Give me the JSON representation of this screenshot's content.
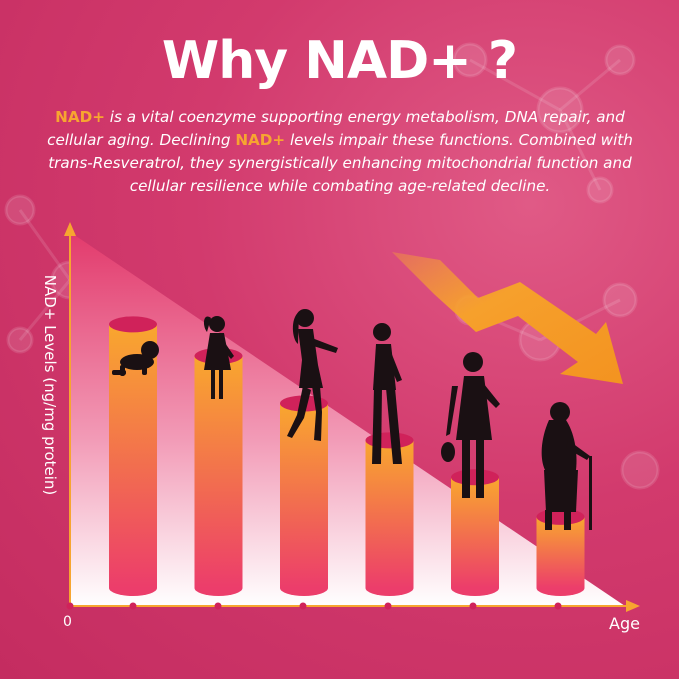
{
  "title": "Why NAD+ ?",
  "description": {
    "hl1": "NAD+",
    "part1": " is a vital coenzyme supporting energy metabolism, DNA repair, and cellular aging. Declining ",
    "hl2": "NAD+",
    "part2": " levels impair these functions. Combined with trans-Resveratrol, they synergistically enhancing mitochondrial function and cellular resilience while combating age-related decline."
  },
  "colors": {
    "background": "#d23a6d",
    "accent": "#f7a530",
    "bar_top": "#f9a72e",
    "bar_bottom": "#ec3d6b",
    "bar_cap": "#d0225a",
    "axis": "#f7a530"
  },
  "icons": [
    "baby-silhouette",
    "girl-silhouette",
    "young-woman-silhouette",
    "woman-silhouette",
    "older-woman-silhouette",
    "elderly-woman-silhouette",
    "downward-trend-arrow"
  ],
  "chart_data": {
    "type": "bar",
    "title": "",
    "xlabel": "Age",
    "ylabel": "NAD+ Levels (ng/mg protein)",
    "origin_label": "0",
    "categories": [
      "",
      "",
      "",
      "",
      "",
      ""
    ],
    "values": [
      100,
      88,
      70,
      56,
      42,
      27
    ],
    "ylim": [
      0,
      110
    ],
    "grid": false,
    "legend": "none",
    "trend": "declining"
  }
}
